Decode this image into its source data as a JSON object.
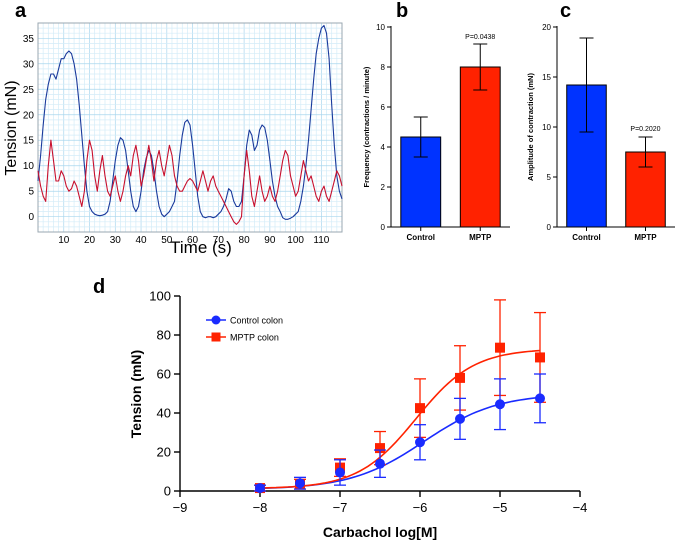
{
  "chart_data": [
    {
      "panel": "a",
      "type": "line",
      "xlabel": "Time (s)",
      "ylabel": "Tension (mN)",
      "xlim": [
        0,
        118
      ],
      "ylim": [
        -3,
        38
      ],
      "x_ticks": [
        10,
        20,
        30,
        40,
        50,
        60,
        70,
        80,
        90,
        100,
        110
      ],
      "y_ticks": [
        0,
        5,
        10,
        15,
        20,
        25,
        30,
        35
      ],
      "grid": true,
      "series": [
        {
          "name": "blue trace",
          "color": "#1a3a9c",
          "x": [
            0,
            1,
            2,
            3,
            4,
            5,
            6,
            7,
            8,
            9,
            10,
            11,
            12,
            13,
            14,
            15,
            16,
            17,
            18,
            19,
            20,
            21,
            22,
            23,
            24,
            25,
            26,
            27,
            28,
            29,
            30,
            31,
            32,
            33,
            34,
            35,
            36,
            37,
            38,
            39,
            40,
            41,
            42,
            43,
            44,
            45,
            46,
            47,
            48,
            49,
            50,
            51,
            52,
            53,
            54,
            55,
            56,
            57,
            58,
            59,
            60,
            61,
            62,
            63,
            64,
            65,
            66,
            67,
            68,
            69,
            70,
            71,
            72,
            73,
            74,
            75,
            76,
            77,
            78,
            79,
            80,
            81,
            82,
            83,
            84,
            85,
            86,
            87,
            88,
            89,
            90,
            91,
            92,
            93,
            94,
            95,
            96,
            97,
            98,
            99,
            100,
            101,
            102,
            103,
            104,
            105,
            106,
            107,
            108,
            109,
            110,
            111,
            112,
            113,
            114,
            115,
            116,
            117,
            118
          ],
          "values": [
            7,
            12,
            18,
            23,
            26,
            28,
            28,
            27,
            29,
            31,
            31,
            32,
            32.5,
            32,
            30,
            27,
            22,
            16,
            10,
            5,
            2,
            1,
            0.5,
            0.3,
            0.2,
            0.3,
            0.5,
            1,
            3,
            7,
            11,
            14,
            15.5,
            15,
            13,
            9,
            5,
            2,
            1,
            2,
            5,
            9,
            11.5,
            13,
            12,
            9,
            5,
            2,
            0.5,
            0,
            0.5,
            1,
            2,
            3,
            7,
            12,
            16,
            18.5,
            19,
            18,
            14,
            9,
            4,
            1,
            0,
            -0.2,
            0,
            0,
            -0.2,
            0,
            0.5,
            1,
            2,
            3.5,
            5.5,
            5,
            3,
            2,
            2,
            3,
            8,
            14,
            17,
            16,
            13,
            14,
            17,
            18,
            17.5,
            15,
            11,
            7,
            4,
            2,
            1,
            -0.2,
            -0.5,
            -0.5,
            -0.3,
            0,
            0.5,
            1,
            3,
            6,
            10,
            15,
            21,
            27,
            32,
            35,
            37,
            37.5,
            36,
            31,
            22,
            14,
            8,
            5,
            3.5
          ]
        },
        {
          "name": "red trace",
          "color": "#c8102e",
          "x": [
            0,
            1,
            2,
            3,
            4,
            5,
            6,
            7,
            8,
            9,
            10,
            11,
            12,
            13,
            14,
            15,
            16,
            17,
            18,
            19,
            20,
            21,
            22,
            23,
            24,
            25,
            26,
            27,
            28,
            29,
            30,
            31,
            32,
            33,
            34,
            35,
            36,
            37,
            38,
            39,
            40,
            41,
            42,
            43,
            44,
            45,
            46,
            47,
            48,
            49,
            50,
            51,
            52,
            53,
            54,
            55,
            56,
            57,
            58,
            59,
            60,
            61,
            62,
            63,
            64,
            65,
            66,
            67,
            68,
            69,
            70,
            71,
            72,
            73,
            74,
            75,
            76,
            77,
            78,
            79,
            80,
            81,
            82,
            83,
            84,
            85,
            86,
            87,
            88,
            89,
            90,
            91,
            92,
            93,
            94,
            95,
            96,
            97,
            98,
            99,
            100,
            101,
            102,
            103,
            104,
            105,
            106,
            107,
            108,
            109,
            110,
            111,
            112,
            113,
            114,
            115,
            116,
            117,
            118
          ],
          "values": [
            9,
            6,
            4,
            3,
            10,
            15,
            11,
            7,
            7,
            9,
            8,
            6,
            5,
            5.5,
            7,
            6,
            4,
            2,
            5,
            11,
            15,
            13,
            8,
            5,
            9,
            12,
            8,
            5,
            4,
            6,
            8,
            5,
            3,
            5,
            8,
            10,
            8,
            12,
            14,
            11,
            6,
            8,
            11,
            14,
            11,
            7,
            11,
            13,
            10,
            8,
            11,
            14,
            12,
            8,
            6,
            5,
            5,
            6,
            7,
            7.5,
            7,
            6,
            5,
            7,
            9,
            7,
            5,
            7,
            8,
            6,
            5,
            4,
            3,
            2,
            1,
            0,
            -1,
            -1.5,
            -1,
            0,
            8,
            13,
            9,
            4,
            2,
            5,
            8,
            5,
            3,
            4,
            6,
            4,
            3,
            5,
            8,
            11,
            13,
            12,
            8,
            6,
            4,
            5,
            8,
            11,
            9,
            7,
            8,
            6,
            4,
            3,
            5,
            6,
            4,
            3,
            5,
            7,
            9,
            8,
            6
          ]
        }
      ]
    },
    {
      "panel": "b",
      "type": "bar",
      "categories": [
        "Control",
        "MPTP"
      ],
      "values": [
        4.5,
        8.0
      ],
      "error": [
        1.0,
        1.15
      ],
      "colors": [
        "#0033ff",
        "#ff2200"
      ],
      "ylabel": "Frequency (contractions / minute)",
      "ylim": [
        0,
        10
      ],
      "y_ticks": [
        0,
        2,
        4,
        6,
        8,
        10
      ],
      "annotation": "P=0.0438"
    },
    {
      "panel": "c",
      "type": "bar",
      "categories": [
        "Control",
        "MPTP"
      ],
      "values": [
        14.2,
        7.5
      ],
      "error": [
        4.7,
        1.5
      ],
      "colors": [
        "#0033ff",
        "#ff2200"
      ],
      "ylabel": "Amplitude of contraction (mN)",
      "ylim": [
        0,
        20
      ],
      "y_ticks": [
        0,
        5,
        10,
        15,
        20
      ],
      "annotation": "P=0.2020"
    },
    {
      "panel": "d",
      "type": "scatter",
      "xlabel": "Carbachol log[M]",
      "ylabel": "Tension (mN)",
      "xlim": [
        -9,
        -4
      ],
      "ylim": [
        0,
        100
      ],
      "x_ticks": [
        -9,
        -8,
        -7,
        -6,
        -5,
        -4
      ],
      "y_ticks": [
        0,
        20,
        40,
        60,
        80,
        100
      ],
      "legend": "top-left",
      "series": [
        {
          "name": "Control colon",
          "color": "#1a2bff",
          "marker": "circle",
          "x": [
            -8,
            -7.5,
            -7,
            -6.5,
            -6,
            -5.5,
            -5,
            -4.5
          ],
          "values": [
            1.5,
            4,
            9.5,
            14,
            25,
            37,
            44.5,
            47.5
          ],
          "error": [
            1.5,
            3,
            6.5,
            7,
            9,
            10.5,
            13,
            12.5
          ],
          "fit": {
            "bottom": 0.8,
            "top": 50,
            "logEC50": -5.95,
            "hill": 0.95
          }
        },
        {
          "name": "MPTP colon",
          "color": "#ff2200",
          "marker": "square",
          "x": [
            -8,
            -7.5,
            -7,
            -6.5,
            -6,
            -5.5,
            -5,
            -4.5
          ],
          "values": [
            1.5,
            3.5,
            12,
            22,
            42.5,
            58,
            73.5,
            68.5
          ],
          "error": [
            1.5,
            2.5,
            4.5,
            8.5,
            15,
            16.5,
            24.5,
            23
          ],
          "fit": {
            "bottom": 1.2,
            "top": 73,
            "logEC50": -6.05,
            "hill": 1.2
          }
        }
      ]
    }
  ]
}
